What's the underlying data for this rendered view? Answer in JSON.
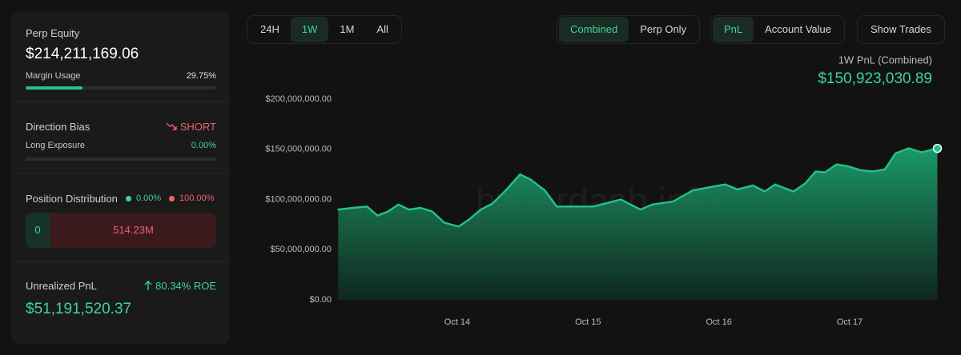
{
  "panel": {
    "equity": {
      "label": "Perp Equity",
      "value": "$214,211,169.06",
      "margin_label": "Margin Usage",
      "margin_usage": {
        "value": 29.75,
        "label": "29.75%"
      }
    },
    "direction": {
      "label": "Direction Bias",
      "bias": "SHORT",
      "long_label": "Long Exposure",
      "long_exposure": {
        "value": 0,
        "label": "0.00%"
      }
    },
    "distribution": {
      "label": "Position Distribution",
      "long_pct": "0.00%",
      "short_pct": "100.00%",
      "long_amount": "0",
      "short_amount": "514.23M"
    },
    "pnl": {
      "label": "Unrealized PnL",
      "roe": "80.34% ROE",
      "value": "$51,191,520.37"
    }
  },
  "toolbar": {
    "ranges": {
      "items": [
        "24H",
        "1W",
        "1M",
        "All"
      ],
      "selected": 1
    },
    "modes": {
      "items": [
        "Combined",
        "Perp Only"
      ],
      "selected": 0
    },
    "metrics": {
      "items": [
        "PnL",
        "Account Value"
      ],
      "selected": 0
    },
    "button": "Show Trades"
  },
  "chart_data": {
    "type": "area",
    "title": "1W PnL (Combined)",
    "current_label": "$150,923,030.89",
    "watermark": "hyperdash.info",
    "color": "#22c38a",
    "grid": false,
    "x": [
      13.09,
      13.2,
      13.31,
      13.39,
      13.47,
      13.55,
      13.63,
      13.72,
      13.81,
      13.9,
      14.01,
      14.09,
      14.18,
      14.27,
      14.37,
      14.48,
      14.56,
      14.67,
      14.76,
      14.85,
      15.04,
      15.16,
      15.25,
      15.4,
      15.49,
      15.65,
      15.8,
      15.92,
      16.05,
      16.14,
      16.26,
      16.35,
      16.43,
      16.57,
      16.66,
      16.74,
      16.81,
      16.9,
      16.99,
      17.09,
      17.18,
      17.27,
      17.35,
      17.45,
      17.55,
      17.67
    ],
    "values": [
      90000000,
      91600000,
      93000000,
      84000000,
      88000000,
      95000000,
      90000000,
      91600000,
      88000000,
      77000000,
      73000000,
      80000000,
      90000000,
      96000000,
      109000000,
      125000000,
      120000000,
      109000000,
      93000000,
      93000000,
      93000000,
      97000000,
      100000000,
      90000000,
      95000000,
      98000000,
      109000000,
      112000000,
      115000000,
      110000000,
      114000000,
      108000000,
      115000000,
      108000000,
      116000000,
      128000000,
      127000000,
      135000000,
      133000000,
      129000000,
      128000000,
      130000000,
      146000000,
      151000000,
      147000000,
      150923030.89
    ],
    "xlim": [
      13.088,
      17.667
    ],
    "xticks": [
      {
        "value": 14,
        "label": "Oct 14"
      },
      {
        "value": 15,
        "label": "Oct 15"
      },
      {
        "value": 16,
        "label": "Oct 16"
      },
      {
        "value": 17,
        "label": "Oct 17"
      }
    ],
    "ylim": [
      0,
      200000000
    ],
    "yticks": [
      {
        "value": 0,
        "label": "$0.00"
      },
      {
        "value": 50000000,
        "label": "$50,000,000.00"
      },
      {
        "value": 100000000,
        "label": "$100,000,000.00"
      },
      {
        "value": 150000000,
        "label": "$150,000,000.00"
      },
      {
        "value": 200000000,
        "label": "$200,000,000.00"
      }
    ]
  }
}
